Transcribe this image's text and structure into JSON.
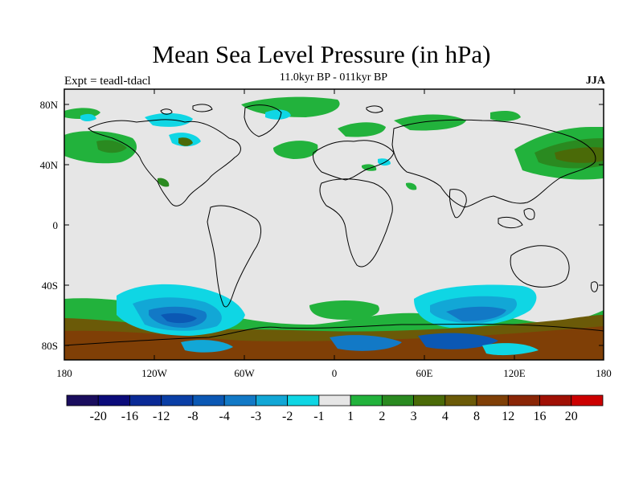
{
  "title": "Mean Sea Level Pressure (in hPa)",
  "subtitle": "11.0kyr BP - 011kyr BP",
  "experiment_label": "Expt = teadl-tdacl",
  "season_label": "JJA",
  "lat_ticks": [
    "80N",
    "40N",
    "0",
    "40S",
    "80S"
  ],
  "lon_ticks": [
    "180",
    "120W",
    "60W",
    "0",
    "60E",
    "120E",
    "180"
  ],
  "colorbar": {
    "labels": [
      "-20",
      "-16",
      "-12",
      "-8",
      "-4",
      "-3",
      "-2",
      "-1",
      "1",
      "2",
      "3",
      "4",
      "8",
      "12",
      "16",
      "20"
    ],
    "colors": [
      "#1a0d5e",
      "#0b0b7a",
      "#0a2a96",
      "#0a3fa6",
      "#0b58b4",
      "#1279c6",
      "#12a7d6",
      "#0fd6e4",
      "#e6e6e6",
      "#22b23c",
      "#2a8a20",
      "#4a6a08",
      "#6b5a08",
      "#7f3f06",
      "#8a2606",
      "#a01004",
      "#cc0000"
    ]
  },
  "colors": {
    "land_ocean_background": "#e6e6e6",
    "coastline": "#000000"
  }
}
